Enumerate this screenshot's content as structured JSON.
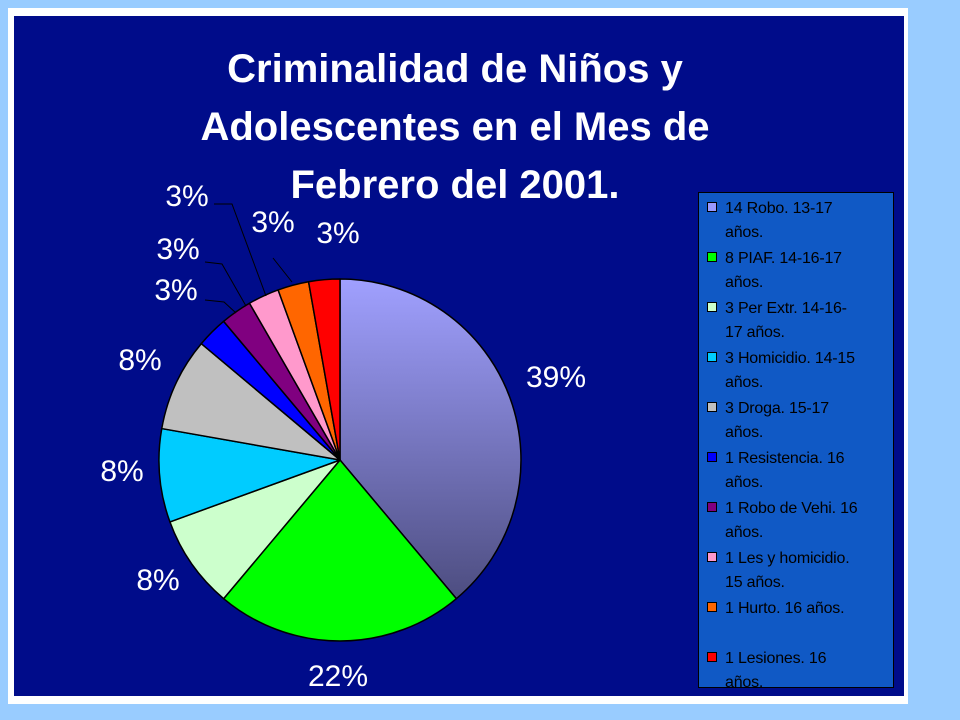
{
  "chart_data": {
    "type": "pie",
    "title_lines": [
      "Criminalidad de Niños y",
      "Adolescentes en el Mes de",
      "Febrero del 2001."
    ],
    "slices": [
      {
        "legend_lines": [
          "14 Robo. 13-17",
          "años."
        ],
        "value": 14,
        "label": "39%",
        "color": "#9999ff"
      },
      {
        "legend_lines": [
          "8 PIAF. 14-16-17",
          "años."
        ],
        "value": 8,
        "label": "22%",
        "color": "#00ff00"
      },
      {
        "legend_lines": [
          "3 Per Extr. 14-16-",
          "17 años."
        ],
        "value": 3,
        "label": "8%",
        "color": "#ccffcc"
      },
      {
        "legend_lines": [
          "3 Homicidio. 14-15",
          "años."
        ],
        "value": 3,
        "label": "8%",
        "color": "#00ccff"
      },
      {
        "legend_lines": [
          "3 Droga. 15-17",
          "años."
        ],
        "value": 3,
        "label": "8%",
        "color": "#c0c0c0"
      },
      {
        "legend_lines": [
          "1 Resistencia. 16",
          "años."
        ],
        "value": 1,
        "label": "3%",
        "color": "#0000ff"
      },
      {
        "legend_lines": [
          "1 Robo de Vehi. 16",
          "años."
        ],
        "value": 1,
        "label": "3%",
        "color": "#800080"
      },
      {
        "legend_lines": [
          "1 Les y homicidio.",
          "15 años."
        ],
        "value": 1,
        "label": "3%",
        "color": "#ff99cc"
      },
      {
        "legend_lines": [
          "1 Hurto. 16 años."
        ],
        "value": 1,
        "label": "3%",
        "color": "#ff6600"
      },
      {
        "legend_lines": [
          "1 Lesiones. 16",
          "años."
        ],
        "value": 1,
        "label": "3%",
        "color": "#ff0000"
      }
    ],
    "start": "12 o'clock",
    "direction": "clockwise",
    "legend_position": "right"
  },
  "colors": {
    "slide_background": "#99ccff",
    "chart_background": "#000c8a",
    "legend_background": "#1059c5",
    "text": "#ffffff"
  }
}
